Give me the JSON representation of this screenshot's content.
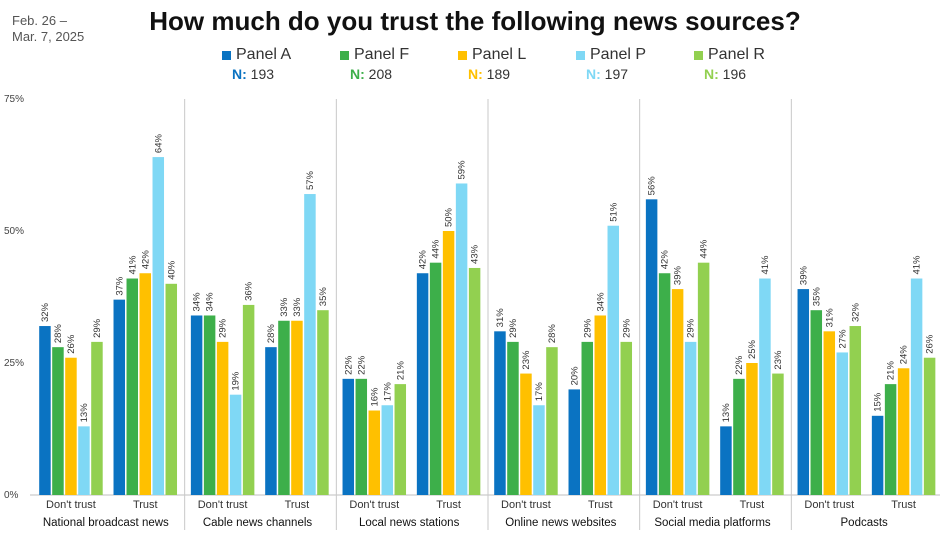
{
  "header": {
    "date_line1": "Feb. 26 –",
    "date_line2": "Mar. 7, 2025",
    "title": "How much do you trust the following news sources?"
  },
  "legend": [
    {
      "name": "Panel A",
      "n_label": "N:",
      "n_value": "193",
      "color": "#0a73c2"
    },
    {
      "name": "Panel F",
      "n_label": "N:",
      "n_value": "208",
      "color": "#3daf4a"
    },
    {
      "name": "Panel L",
      "n_label": "N:",
      "n_value": "189",
      "color": "#ffc000"
    },
    {
      "name": "Panel P",
      "n_label": "N:",
      "n_value": "197",
      "color": "#7fd8f5"
    },
    {
      "name": "Panel R",
      "n_label": "N:",
      "n_value": "196",
      "color": "#92d050"
    }
  ],
  "chart_data": {
    "type": "bar",
    "ylim": [
      0,
      75
    ],
    "yticks": [
      0,
      25,
      50,
      75
    ],
    "ytick_labels": [
      "0%",
      "25%",
      "50%",
      "75%"
    ],
    "groups": [
      {
        "name": "National broadcast news",
        "categories": [
          {
            "label": "Don't trust",
            "values": [
              32,
              28,
              26,
              13,
              29
            ]
          },
          {
            "label": "Trust",
            "values": [
              37,
              41,
              42,
              64,
              40
            ]
          }
        ]
      },
      {
        "name": "Cable news channels",
        "categories": [
          {
            "label": "Don't trust",
            "values": [
              34,
              34,
              29,
              19,
              36
            ]
          },
          {
            "label": "Trust",
            "values": [
              28,
              33,
              33,
              57,
              35
            ]
          }
        ]
      },
      {
        "name": "Local news stations",
        "categories": [
          {
            "label": "Don't trust",
            "values": [
              22,
              22,
              16,
              17,
              21
            ]
          },
          {
            "label": "Trust",
            "values": [
              42,
              44,
              50,
              59,
              43
            ]
          }
        ]
      },
      {
        "name": "Online news websites",
        "categories": [
          {
            "label": "Don't trust",
            "values": [
              31,
              29,
              23,
              17,
              28
            ]
          },
          {
            "label": "Trust",
            "values": [
              20,
              29,
              34,
              51,
              29
            ]
          }
        ]
      },
      {
        "name": "Social media platforms",
        "categories": [
          {
            "label": "Don't trust",
            "values": [
              56,
              42,
              39,
              29,
              44
            ]
          },
          {
            "label": "Trust",
            "values": [
              13,
              22,
              25,
              41,
              23
            ]
          }
        ]
      },
      {
        "name": "Podcasts",
        "categories": [
          {
            "label": "Don't trust",
            "values": [
              39,
              35,
              31,
              27,
              32
            ]
          },
          {
            "label": "Trust",
            "values": [
              15,
              21,
              24,
              41,
              26
            ]
          }
        ]
      }
    ]
  }
}
